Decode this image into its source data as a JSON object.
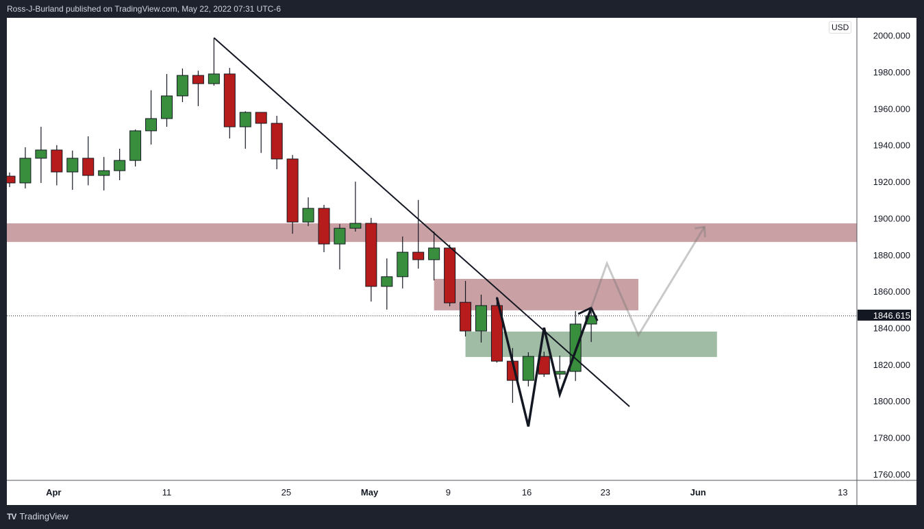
{
  "header": {
    "title": "Ross-J-Burland published on TradingView.com, May 22, 2022 07:31 UTC-6"
  },
  "footer": {
    "logo_label": "TradingView"
  },
  "currency": "USD",
  "colors": {
    "up": "#388e3c",
    "down": "#b71c1c",
    "resistance_zone": "#c9a0a4",
    "support_zone": "#a0bca4",
    "background": "#1e222d"
  },
  "chart_data": {
    "type": "candlestick",
    "title": "",
    "ylim": [
      1750,
      2005
    ],
    "y_ticks": [
      "2000.000",
      "1980.000",
      "1960.000",
      "1940.000",
      "1920.000",
      "1900.000",
      "1880.000",
      "1860.000",
      "1840.000",
      "1820.000",
      "1800.000",
      "1780.000",
      "1760.000"
    ],
    "x_ticks": [
      {
        "label": "Apr",
        "index": 2.8
      },
      {
        "label": "11",
        "index": 10
      },
      {
        "label": "25",
        "index": 17.6
      },
      {
        "label": "May",
        "index": 22.9
      },
      {
        "label": "9",
        "index": 27.9
      },
      {
        "label": "16",
        "index": 32.9
      },
      {
        "label": "23",
        "index": 37.9
      },
      {
        "label": "Jun",
        "index": 43.8
      },
      {
        "label": "13",
        "index": 53
      }
    ],
    "last_price": "1846.615",
    "candles": [
      [
        1923,
        1925,
        1917,
        1919.3
      ],
      [
        1919.3,
        1938.8,
        1916.3,
        1932.8
      ],
      [
        1932.8,
        1950,
        1919.3,
        1937.3
      ],
      [
        1937.3,
        1940,
        1918,
        1925.3
      ],
      [
        1925.3,
        1937,
        1915.5,
        1932.8
      ],
      [
        1932.8,
        1944.8,
        1918,
        1923.4
      ],
      [
        1923.4,
        1933.5,
        1915.2,
        1926
      ],
      [
        1926,
        1938,
        1920.8,
        1931.6
      ],
      [
        1931.6,
        1948.5,
        1928.3,
        1947.8
      ],
      [
        1947.8,
        1970,
        1940.3,
        1954.5
      ],
      [
        1954.5,
        1978.9,
        1950,
        1966.9
      ],
      [
        1966.9,
        1981.9,
        1963.5,
        1978.1
      ],
      [
        1978.1,
        1980.7,
        1961.3,
        1973.6
      ],
      [
        1973.6,
        1998.7,
        1972.5,
        1978.9
      ],
      [
        1978.9,
        1982.2,
        1943.6,
        1950
      ],
      [
        1950,
        1958.5,
        1938,
        1957.9
      ],
      [
        1957.9,
        1958,
        1935.7,
        1951.9
      ],
      [
        1951.9,
        1956,
        1926.8,
        1932.4
      ],
      [
        1932.4,
        1934.6,
        1891.5,
        1897.9
      ],
      [
        1897.9,
        1911.4,
        1895.7,
        1905.4
      ],
      [
        1905.4,
        1907.3,
        1881.4,
        1885.9
      ],
      [
        1885.9,
        1896.8,
        1872,
        1894.5
      ],
      [
        1894.5,
        1920,
        1892.7,
        1897.2
      ],
      [
        1897.2,
        1900.2,
        1854.4,
        1862.7
      ],
      [
        1862.7,
        1878,
        1850,
        1868
      ],
      [
        1868,
        1890,
        1861.6,
        1881.4
      ],
      [
        1881.4,
        1910,
        1872.4,
        1877.3
      ],
      [
        1877.3,
        1892.7,
        1866,
        1883.7
      ],
      [
        1883.7,
        1885.5,
        1851.8,
        1853.7
      ],
      [
        1854,
        1865.7,
        1835.3,
        1838.3
      ],
      [
        1838.3,
        1858.2,
        1832,
        1852.2
      ],
      [
        1852.2,
        1857,
        1821,
        1821.8
      ],
      [
        1821.8,
        1829,
        1799,
        1811.3
      ],
      [
        1811.3,
        1826.7,
        1808,
        1824.4
      ],
      [
        1824.4,
        1827,
        1813.2,
        1814.7
      ],
      [
        1814.7,
        1824.8,
        1812,
        1816.2
      ],
      [
        1816.2,
        1849.2,
        1811,
        1842.1
      ],
      [
        1842.1,
        1849,
        1832.3,
        1846.6
      ]
    ],
    "zones": [
      {
        "name": "resistance-zone-upper",
        "from_index": -1,
        "to_index": 58,
        "low": 1887.0,
        "high": 1897.2,
        "color": "resistance_zone"
      },
      {
        "name": "resistance-zone-lower",
        "from_index": 27,
        "to_index": 40,
        "low": 1849.6,
        "high": 1866.8,
        "color": "resistance_zone"
      },
      {
        "name": "support-zone",
        "from_index": 29,
        "to_index": 45,
        "low": 1824.1,
        "high": 1838,
        "color": "support_zone"
      }
    ],
    "trendline": [
      [
        13,
        1998.7
      ],
      [
        39,
        1797
      ]
    ],
    "pattern_path": [
      [
        31,
        1856.6
      ],
      [
        33,
        1786.1
      ],
      [
        34,
        1840.1
      ],
      [
        35,
        1803.7
      ],
      [
        37,
        1851
      ]
    ],
    "projection_path": [
      [
        37,
        1851
      ],
      [
        38,
        1875.3
      ],
      [
        40,
        1836
      ],
      [
        44.2,
        1895.2
      ]
    ]
  }
}
